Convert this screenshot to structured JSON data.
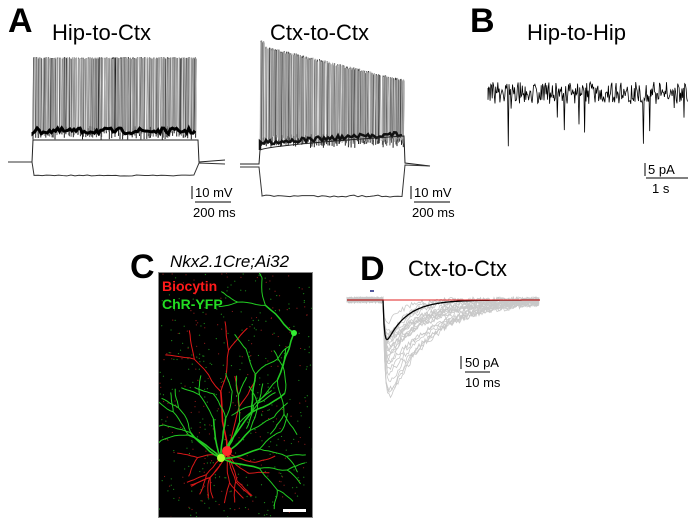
{
  "panels": {
    "A": {
      "label": "A",
      "left_title": "Hip-to-Ctx",
      "right_title": "Ctx-to-Ctx",
      "scale_v": "10 mV",
      "scale_t": "200 ms"
    },
    "B": {
      "label": "B",
      "title": "Hip-to-Hip",
      "scale_v": "5 pA",
      "scale_t": "1 s"
    },
    "C": {
      "label": "C",
      "title": "Nkx2.1Cre;Ai32",
      "legend_red": "Biocytin",
      "legend_green": "ChR-YFP",
      "colors": {
        "red": "#ff1a1a",
        "green": "#22dd22",
        "background": "#000000"
      }
    },
    "D": {
      "label": "D",
      "title": "Ctx-to-Ctx",
      "scale_i": "50 pA",
      "scale_t": "10 ms",
      "colors": {
        "individual": "#c8c8c8",
        "mean": "#000000",
        "baseline": "#e02020",
        "stimulus": "#1a237e"
      }
    }
  }
}
